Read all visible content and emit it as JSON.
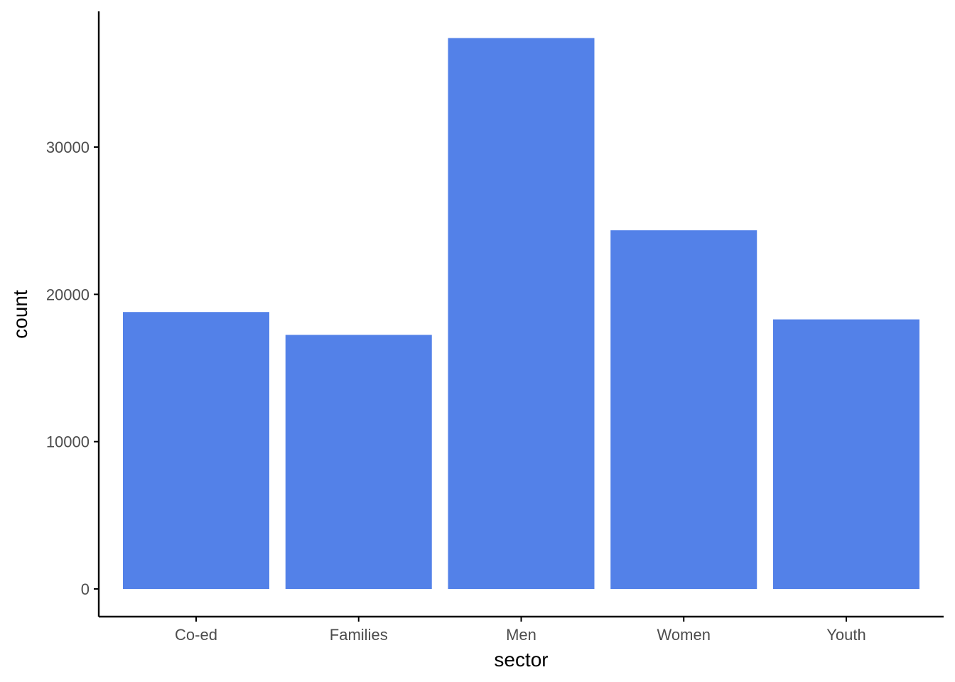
{
  "chart_data": {
    "type": "bar",
    "title": "",
    "xlabel": "sector",
    "ylabel": "count",
    "categories": [
      "Co-ed",
      "Families",
      "Men",
      "Women",
      "Youth"
    ],
    "values": [
      18800,
      17250,
      37400,
      24350,
      18300
    ],
    "ylim": [
      0,
      39000
    ],
    "yticks": [
      0,
      10000,
      20000,
      30000
    ],
    "ytick_labels": [
      "0",
      "10000",
      "20000",
      "30000"
    ],
    "grid": false,
    "legend": "none",
    "bar_color": "#5381e8",
    "axis_color": "#000000",
    "tick_label_color": "#4d4d4d"
  }
}
